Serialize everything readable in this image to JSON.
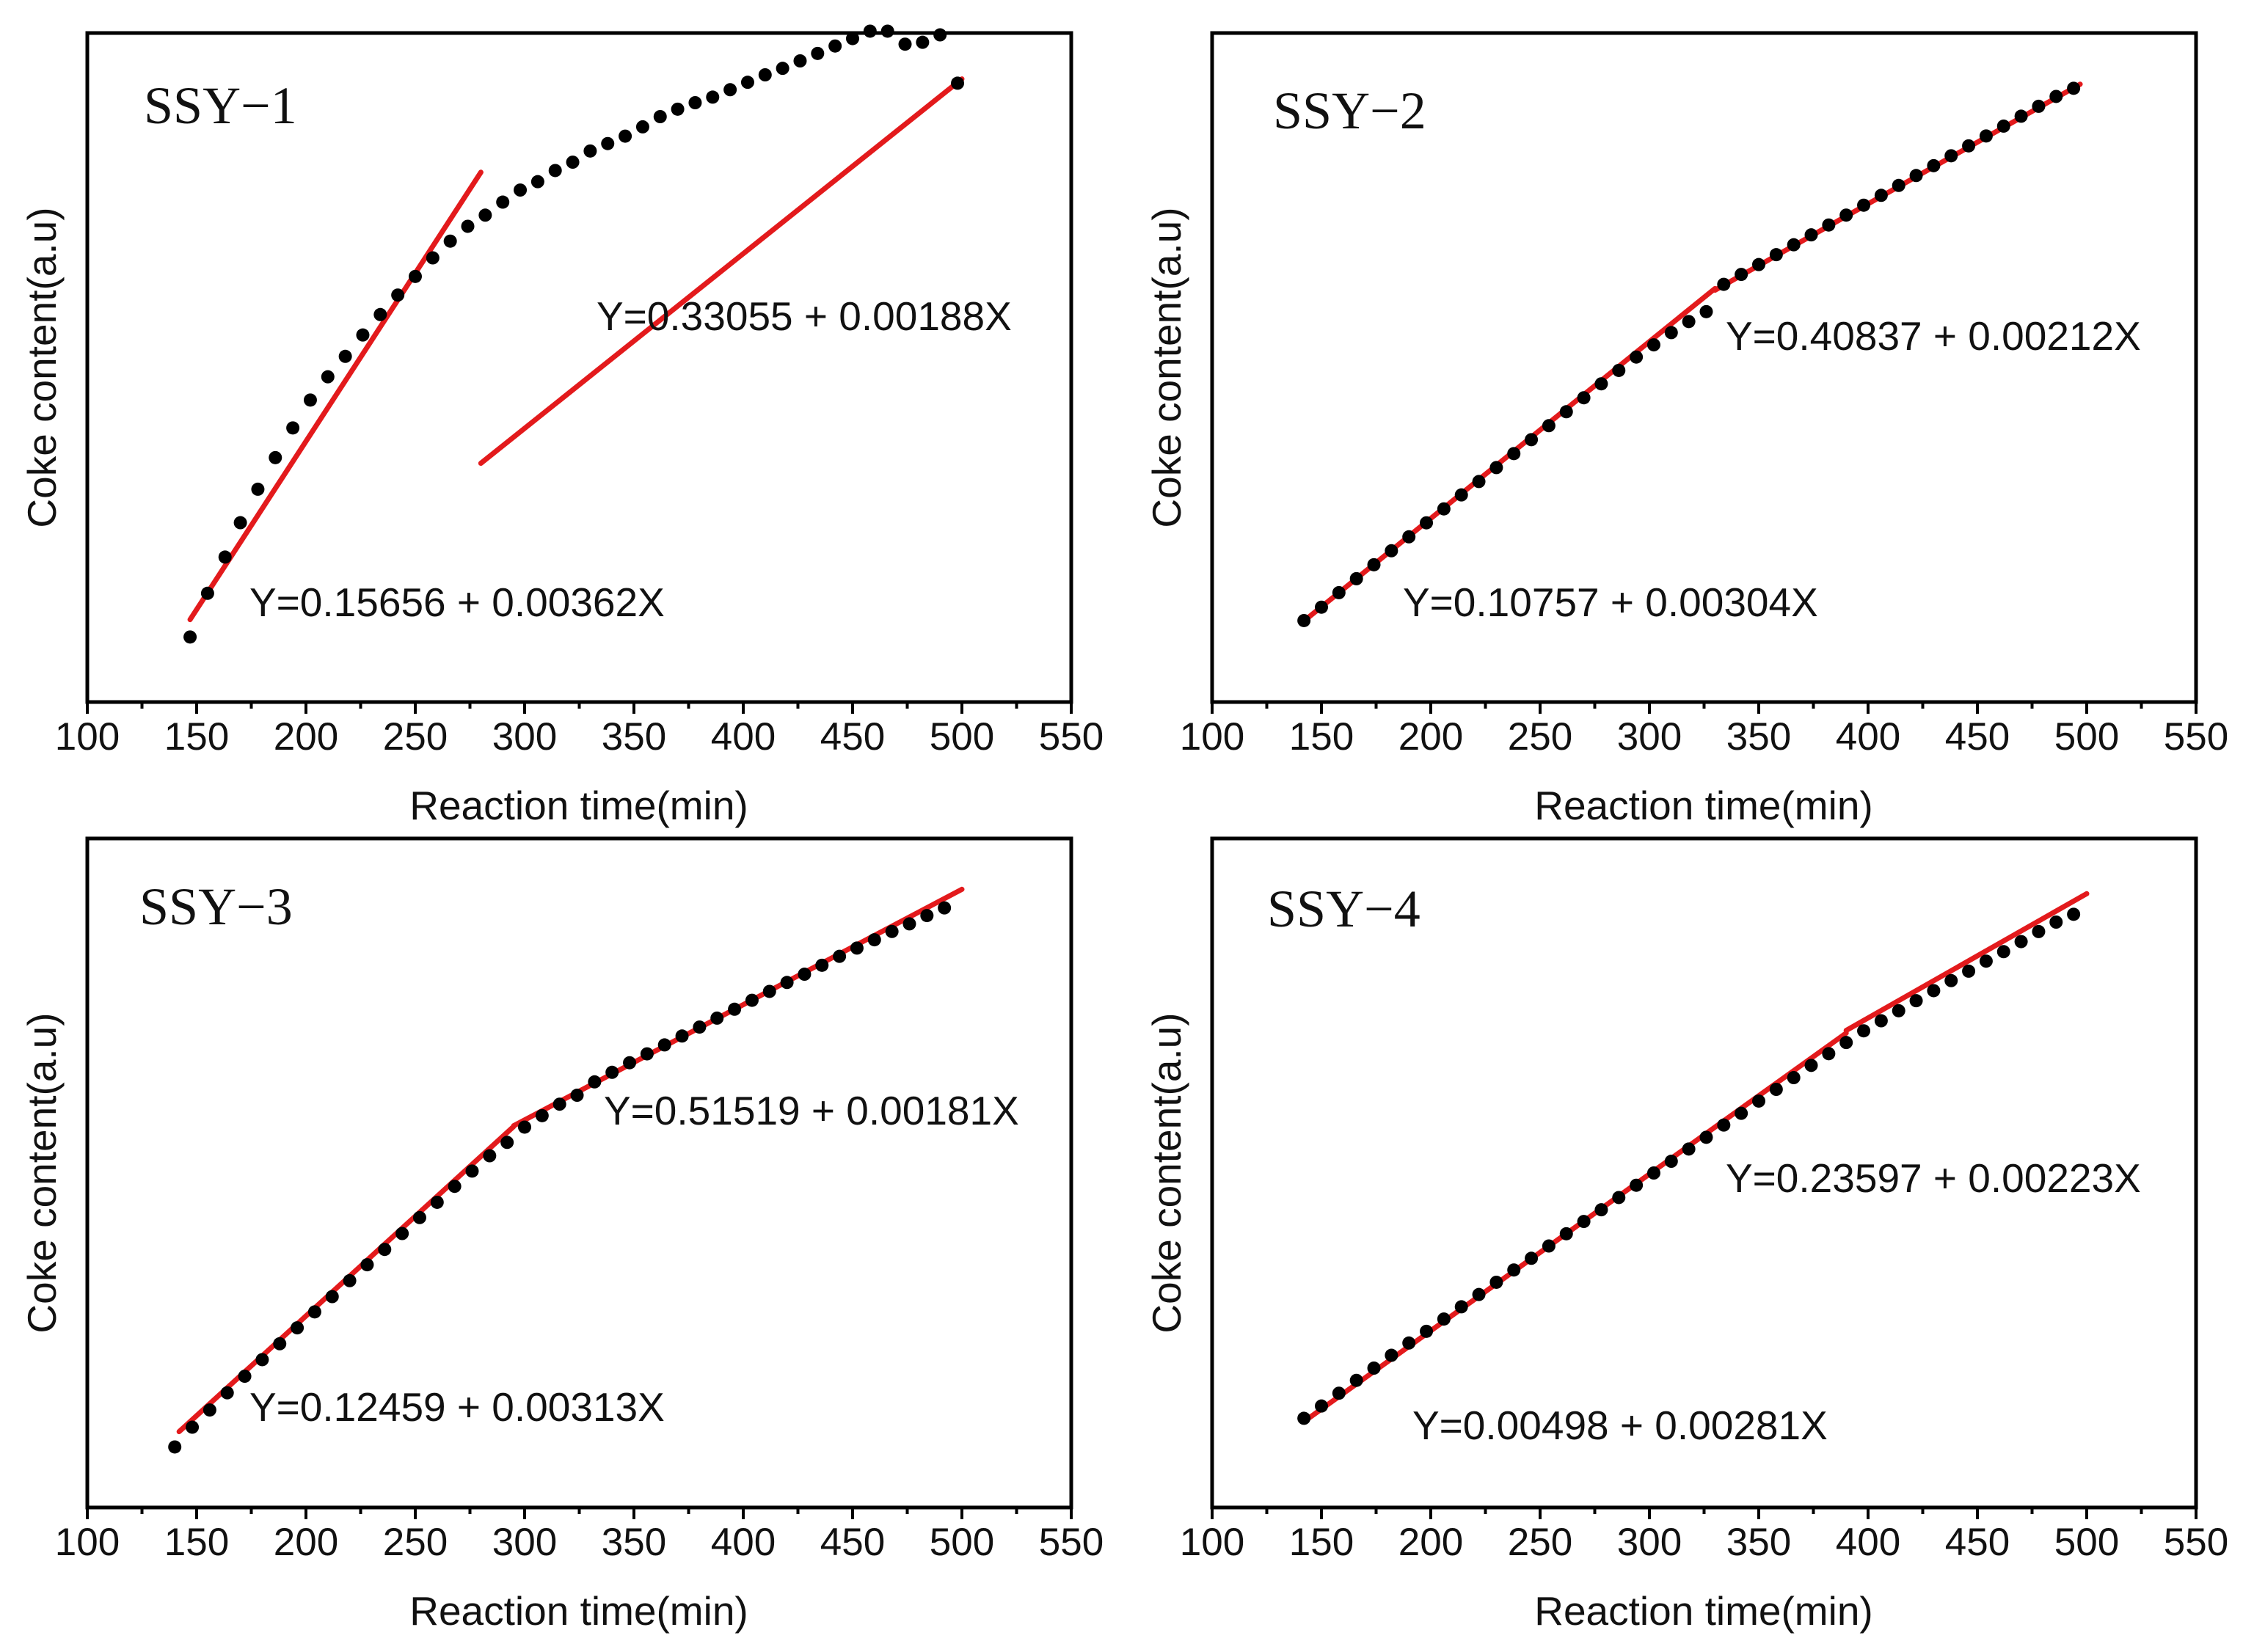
{
  "figure": {
    "panels": [
      {
        "title": "SSY−1",
        "xlabel": "Reaction time(min)",
        "ylabel": "Coke content(a.u)",
        "breakpoint": 280,
        "equations": [
          {
            "text": "Y=0.15656 + 0.00362X",
            "intercept": 0.15656,
            "slope": 0.00362
          },
          {
            "text": "Y=0.33055 + 0.00188X",
            "intercept": 0.33055,
            "slope": 0.00188
          }
        ]
      },
      {
        "title": "SSY−2",
        "xlabel": "Reaction time(min)",
        "ylabel": "Coke content(a.u)",
        "breakpoint": 330,
        "equations": [
          {
            "text": "Y=0.10757 + 0.00304X",
            "intercept": 0.10757,
            "slope": 0.00304
          },
          {
            "text": "Y=0.40837 + 0.00212X",
            "intercept": 0.40837,
            "slope": 0.00212
          }
        ]
      },
      {
        "title": "SSY−3",
        "xlabel": "Reaction time(min)",
        "ylabel": "Coke content(a.u)",
        "breakpoint": 295,
        "equations": [
          {
            "text": "Y=0.12459 + 0.00313X",
            "intercept": 0.12459,
            "slope": 0.00313
          },
          {
            "text": "Y=0.51519 + 0.00181X",
            "intercept": 0.51519,
            "slope": 0.00181
          }
        ]
      },
      {
        "title": "SSY−4",
        "xlabel": "Reaction time(min)",
        "ylabel": "Coke content(a.u)",
        "breakpoint": 390,
        "equations": [
          {
            "text": "Y=0.00498 + 0.00281X",
            "intercept": 0.00498,
            "slope": 0.00281
          },
          {
            "text": "Y=0.23597 + 0.00223X",
            "intercept": 0.23597,
            "slope": 0.00223
          }
        ]
      }
    ]
  },
  "chart_data": [
    {
      "type": "scatter",
      "title": "SSY−1",
      "xlabel": "Reaction time(min)",
      "ylabel": "Coke content(a.u)",
      "xlim": [
        100,
        550
      ],
      "ylim": [
        0.6,
        1.32
      ],
      "xticks": [
        100,
        150,
        200,
        250,
        300,
        350,
        400,
        450,
        500,
        550
      ],
      "fit_segments": [
        {
          "x": [
            147,
            280
          ],
          "equation": "Y=0.15656 + 0.00362X",
          "color": "#e31a1c"
        },
        {
          "x": [
            280,
            500
          ],
          "equation": "Y=0.33055 + 0.00188X",
          "color": "#e31a1c"
        }
      ],
      "series": [
        {
          "name": "measured",
          "color": "#000000",
          "x": [
            147,
            155,
            163,
            170,
            178,
            186,
            194,
            202,
            210,
            218,
            226,
            234,
            242,
            250,
            258,
            266,
            274,
            282,
            290,
            298,
            306,
            314,
            322,
            330,
            338,
            346,
            354,
            362,
            370,
            378,
            386,
            394,
            402,
            410,
            418,
            426,
            434,
            442,
            450,
            458,
            466,
            474,
            482,
            490,
            498
          ],
          "y": [
            0.67,
            0.717,
            0.756,
            0.793,
            0.829,
            0.863,
            0.895,
            0.925,
            0.95,
            0.972,
            0.995,
            1.017,
            1.038,
            1.058,
            1.078,
            1.096,
            1.112,
            1.124,
            1.138,
            1.151,
            1.16,
            1.172,
            1.181,
            1.193,
            1.201,
            1.209,
            1.219,
            1.23,
            1.238,
            1.245,
            1.251,
            1.259,
            1.267,
            1.275,
            1.282,
            1.29,
            1.298,
            1.306,
            1.314,
            1.322,
            1.322,
            1.308,
            1.31,
            1.318,
            1.266
          ]
        }
      ]
    },
    {
      "type": "scatter",
      "title": "SSY−2",
      "xlabel": "Reaction time(min)",
      "ylabel": "Coke content(a.u)",
      "xlim": [
        100,
        550
      ],
      "ylim": [
        0.4,
        1.55
      ],
      "xticks": [
        100,
        150,
        200,
        250,
        300,
        350,
        400,
        450,
        500,
        550
      ],
      "fit_segments": [
        {
          "x": [
            142,
            330
          ],
          "equation": "Y=0.10757 + 0.00304X",
          "color": "#e31a1c"
        },
        {
          "x": [
            330,
            497
          ],
          "equation": "Y=0.40837 + 0.00212X",
          "color": "#e31a1c"
        }
      ],
      "series": [
        {
          "name": "measured",
          "color": "#000000",
          "x": [
            142,
            150,
            158,
            166,
            174,
            182,
            190,
            198,
            206,
            214,
            222,
            230,
            238,
            246,
            254,
            262,
            270,
            278,
            286,
            294,
            302,
            310,
            318,
            326,
            334,
            342,
            350,
            358,
            366,
            374,
            382,
            390,
            398,
            406,
            414,
            422,
            430,
            438,
            446,
            454,
            462,
            470,
            478,
            486,
            494
          ],
          "y": [
            0.54,
            0.563,
            0.588,
            0.612,
            0.636,
            0.66,
            0.684,
            0.708,
            0.732,
            0.756,
            0.779,
            0.803,
            0.827,
            0.851,
            0.875,
            0.899,
            0.923,
            0.947,
            0.97,
            0.993,
            1.014,
            1.035,
            1.054,
            1.071,
            1.118,
            1.135,
            1.152,
            1.169,
            1.186,
            1.203,
            1.22,
            1.237,
            1.254,
            1.271,
            1.288,
            1.305,
            1.322,
            1.339,
            1.356,
            1.373,
            1.39,
            1.407,
            1.424,
            1.441,
            1.455
          ]
        }
      ]
    },
    {
      "type": "scatter",
      "title": "SSY−3",
      "xlabel": "Reaction time(min)",
      "ylabel": "Coke content(a.u)",
      "xlim": [
        100,
        550
      ],
      "ylim": [
        0.45,
        1.5
      ],
      "xticks": [
        100,
        150,
        200,
        250,
        300,
        350,
        400,
        450,
        500,
        550
      ],
      "fit_segments": [
        {
          "x": [
            142,
            295
          ],
          "equation": "Y=0.12459 + 0.00313X",
          "color": "#e31a1c"
        },
        {
          "x": [
            295,
            500
          ],
          "equation": "Y=0.51519 + 0.00181X",
          "color": "#e31a1c"
        }
      ],
      "series": [
        {
          "name": "measured",
          "color": "#000000",
          "x": [
            140,
            148,
            156,
            164,
            172,
            180,
            188,
            196,
            204,
            212,
            220,
            228,
            236,
            244,
            252,
            260,
            268,
            276,
            284,
            292,
            300,
            308,
            316,
            324,
            332,
            340,
            348,
            356,
            364,
            372,
            380,
            388,
            396,
            404,
            412,
            420,
            428,
            436,
            444,
            452,
            460,
            468,
            476,
            484,
            492
          ],
          "y": [
            0.545,
            0.576,
            0.603,
            0.63,
            0.656,
            0.682,
            0.707,
            0.732,
            0.757,
            0.781,
            0.806,
            0.831,
            0.855,
            0.88,
            0.905,
            0.929,
            0.954,
            0.978,
            1.002,
            1.023,
            1.047,
            1.065,
            1.083,
            1.097,
            1.118,
            1.133,
            1.148,
            1.162,
            1.176,
            1.19,
            1.204,
            1.218,
            1.232,
            1.246,
            1.26,
            1.274,
            1.287,
            1.301,
            1.315,
            1.328,
            1.341,
            1.354,
            1.366,
            1.379,
            1.391
          ]
        }
      ]
    },
    {
      "type": "scatter",
      "title": "SSY−4",
      "xlabel": "Reaction time(min)",
      "ylabel": "Coke content(a.u)",
      "xlim": [
        100,
        550
      ],
      "ylim": [
        0.25,
        1.45
      ],
      "xticks": [
        100,
        150,
        200,
        250,
        300,
        350,
        400,
        450,
        500,
        550
      ],
      "fit_segments": [
        {
          "x": [
            142,
            390
          ],
          "equation": "Y=0.00498 + 0.00281X",
          "color": "#e31a1c"
        },
        {
          "x": [
            390,
            500
          ],
          "equation": "Y=0.23597 + 0.00223X",
          "color": "#e31a1c"
        }
      ],
      "series": [
        {
          "name": "measured",
          "color": "#000000",
          "x": [
            142,
            150,
            158,
            166,
            174,
            182,
            190,
            198,
            206,
            214,
            222,
            230,
            238,
            246,
            254,
            262,
            270,
            278,
            286,
            294,
            302,
            310,
            318,
            326,
            334,
            342,
            350,
            358,
            366,
            374,
            382,
            390,
            398,
            406,
            414,
            422,
            430,
            438,
            446,
            454,
            462,
            470,
            478,
            486,
            494
          ],
          "y": [
            0.41,
            0.432,
            0.455,
            0.478,
            0.5,
            0.523,
            0.545,
            0.566,
            0.588,
            0.61,
            0.632,
            0.654,
            0.676,
            0.697,
            0.719,
            0.741,
            0.763,
            0.784,
            0.806,
            0.828,
            0.85,
            0.871,
            0.893,
            0.914,
            0.936,
            0.957,
            0.979,
            1.0,
            1.021,
            1.043,
            1.064,
            1.084,
            1.105,
            1.123,
            1.141,
            1.159,
            1.177,
            1.195,
            1.212,
            1.23,
            1.247,
            1.265,
            1.283,
            1.3,
            1.314
          ]
        }
      ]
    }
  ]
}
